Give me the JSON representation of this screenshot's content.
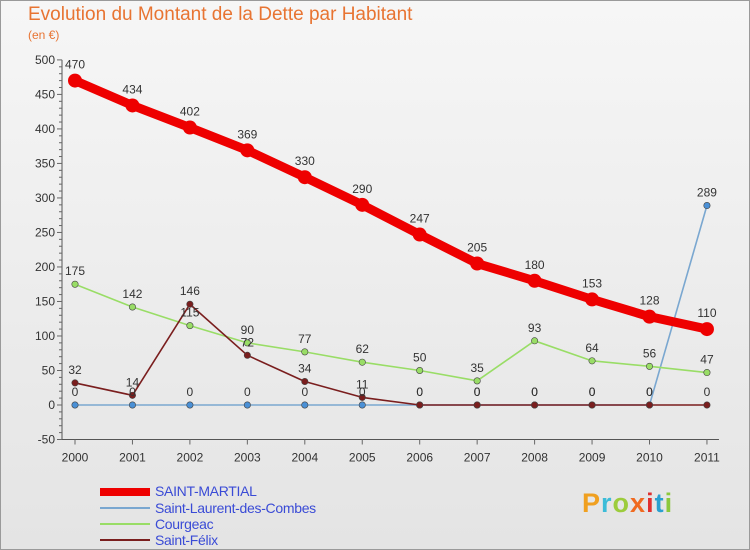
{
  "header": {
    "title": "Evolution du Montant de la Dette par Habitant",
    "subtitle": "(en €)"
  },
  "chart_data": {
    "type": "line",
    "x": [
      "2000",
      "2001",
      "2002",
      "2003",
      "2004",
      "2005",
      "2006",
      "2007",
      "2008",
      "2009",
      "2010",
      "2011"
    ],
    "ylim": [
      -50,
      500
    ],
    "yticks": [
      "-50",
      "0",
      "50",
      "100",
      "150",
      "200",
      "250",
      "300",
      "350",
      "400",
      "450",
      "500"
    ],
    "grid": false,
    "legend_position": "bottom-left",
    "series": [
      {
        "name": "SAINT-MARTIAL",
        "color": "#ee0000",
        "values": [
          470,
          434,
          402,
          369,
          330,
          290,
          247,
          205,
          180,
          153,
          128,
          110
        ],
        "labels": [
          "470",
          "434",
          "402",
          "369",
          "330",
          "290",
          "247",
          "205",
          "180",
          "153",
          "128",
          "110"
        ]
      },
      {
        "name": "Saint-Laurent-des-Combes",
        "color": "#4a90d6",
        "values": [
          0,
          0,
          0,
          0,
          0,
          0,
          0,
          0,
          0,
          0,
          0,
          289
        ],
        "labels": [
          "0",
          "0",
          "0",
          "0",
          "0",
          "0",
          "0",
          "0",
          "0",
          "0",
          "0",
          "289"
        ]
      },
      {
        "name": "Courgeac",
        "color": "#99dd66",
        "values": [
          175,
          142,
          115,
          90,
          77,
          62,
          50,
          35,
          93,
          64,
          56,
          47
        ],
        "labels": [
          "175",
          "142",
          "115",
          "90",
          "77",
          "62",
          "50",
          "35",
          "93",
          "64",
          "56",
          "47"
        ]
      },
      {
        "name": "Saint-Félix",
        "color": "#7a1e1e",
        "values": [
          32,
          14,
          146,
          72,
          34,
          11,
          0,
          0,
          0,
          0,
          0,
          0
        ],
        "labels": [
          "32",
          "14",
          "146",
          "72",
          "34",
          "11",
          "0",
          "0",
          "0",
          "0",
          "0",
          "0"
        ]
      }
    ]
  },
  "legend": {
    "items": [
      "SAINT-MARTIAL",
      "Saint-Laurent-des-Combes",
      "Courgeac",
      "Saint-Félix"
    ]
  },
  "logo": {
    "letters": [
      "P",
      "r",
      "o",
      "x",
      "i",
      "t",
      "i"
    ],
    "colors": [
      "#f0a020",
      "#3cbcd8",
      "#9ccc3c",
      "#f06a20",
      "#e03030",
      "#2aa0d0",
      "#8cc83c"
    ]
  }
}
